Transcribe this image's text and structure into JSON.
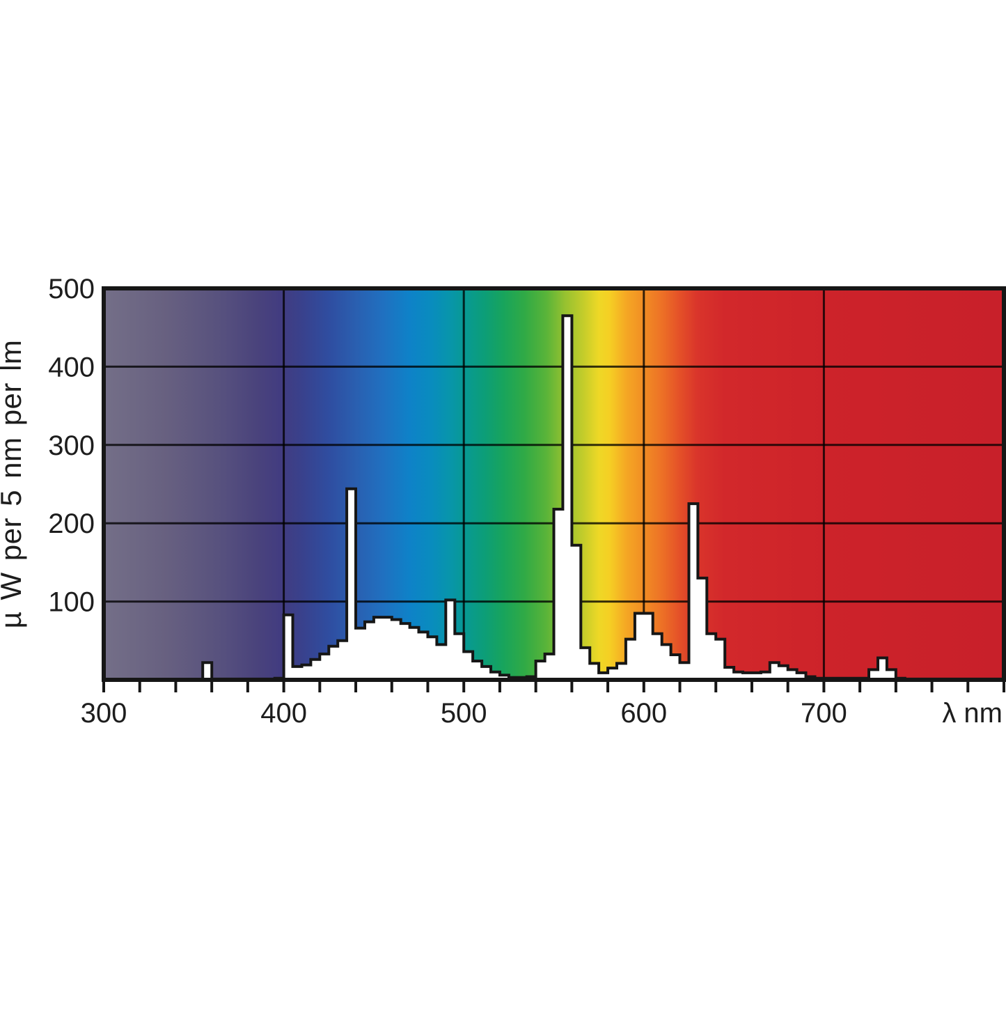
{
  "page": {
    "background": "#ffffff"
  },
  "chart_data": {
    "type": "bar",
    "subtype": "spectral-power-distribution-histogram",
    "title": "",
    "ylabel": "µ W per 5 nm per lm",
    "xlabel": "λ nm",
    "xlim": [
      300,
      800
    ],
    "ylim": [
      0,
      500
    ],
    "y_ticks": [
      100,
      200,
      300,
      400,
      500
    ],
    "x_tick_labels": [
      300,
      400,
      500,
      600,
      700
    ],
    "x_minor_tick_step_nm": 20,
    "grid": true,
    "legend": "none",
    "bin_width_nm": 5,
    "bins_start_nm": 300,
    "values_uW_per_5nm_per_lm": [
      0,
      0,
      0,
      0,
      0,
      0,
      0,
      0,
      0,
      0,
      0,
      22,
      1,
      1,
      1,
      1,
      1,
      1,
      1,
      2,
      83,
      17,
      19,
      26,
      33,
      43,
      50,
      244,
      66,
      74,
      80,
      80,
      77,
      72,
      67,
      61,
      55,
      45,
      102,
      59,
      36,
      24,
      17,
      10,
      6,
      3,
      3,
      4,
      24,
      33,
      218,
      465,
      172,
      41,
      21,
      9,
      15,
      21,
      52,
      85,
      85,
      59,
      45,
      32,
      22,
      225,
      130,
      59,
      52,
      16,
      10,
      9,
      9,
      10,
      22,
      18,
      13,
      9,
      4,
      2,
      2,
      2,
      2,
      2,
      2,
      13,
      28,
      13,
      2,
      1,
      1,
      1,
      1,
      1,
      1,
      1,
      1,
      1,
      1,
      1
    ],
    "background_spectrum_gradient": [
      {
        "nm": 300,
        "color": "#746f88"
      },
      {
        "nm": 335,
        "color": "#676080"
      },
      {
        "nm": 365,
        "color": "#57517e"
      },
      {
        "nm": 385,
        "color": "#4a437c"
      },
      {
        "nm": 398,
        "color": "#423c80"
      },
      {
        "nm": 410,
        "color": "#39418c"
      },
      {
        "nm": 425,
        "color": "#2f4da0"
      },
      {
        "nm": 440,
        "color": "#2a5fb0"
      },
      {
        "nm": 455,
        "color": "#2070c0"
      },
      {
        "nm": 470,
        "color": "#0e82c8"
      },
      {
        "nm": 482,
        "color": "#098cbe"
      },
      {
        "nm": 492,
        "color": "#0895ab"
      },
      {
        "nm": 502,
        "color": "#089a90"
      },
      {
        "nm": 512,
        "color": "#0d9e76"
      },
      {
        "nm": 522,
        "color": "#18a45c"
      },
      {
        "nm": 534,
        "color": "#31aa45"
      },
      {
        "nm": 546,
        "color": "#5ab439"
      },
      {
        "nm": 556,
        "color": "#95c130"
      },
      {
        "nm": 566,
        "color": "#c2cc2b"
      },
      {
        "nm": 575,
        "color": "#eed826"
      },
      {
        "nm": 581,
        "color": "#f5cf24"
      },
      {
        "nm": 590,
        "color": "#f5a824"
      },
      {
        "nm": 600,
        "color": "#f18d24"
      },
      {
        "nm": 610,
        "color": "#ed7126"
      },
      {
        "nm": 620,
        "color": "#e45028"
      },
      {
        "nm": 630,
        "color": "#d9342b"
      },
      {
        "nm": 645,
        "color": "#d2282b"
      },
      {
        "nm": 700,
        "color": "#cd232a"
      },
      {
        "nm": 800,
        "color": "#c8202a"
      }
    ],
    "histogram_fill": "#ffffff",
    "histogram_stroke": "#161616",
    "grid_color": "#000000",
    "grid_opacity": 0.78,
    "axis_color": "#161616",
    "text_color": "#1d1d1d"
  }
}
